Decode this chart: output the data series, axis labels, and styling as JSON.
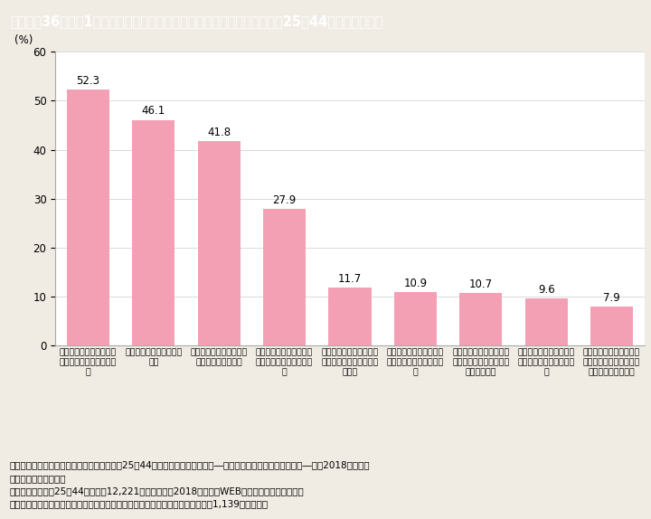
{
  "title": "Ｉ－特－36図　第1子の妊娠・出産を機に仕事を辞めた理由（子供がいる25〜44歳の既婚女性）",
  "ylabel": "(%)",
  "ylim": [
    0,
    60
  ],
  "yticks": [
    0,
    10,
    20,
    30,
    40,
    50,
    60
  ],
  "values": [
    52.3,
    46.1,
    41.8,
    27.9,
    11.7,
    10.9,
    10.7,
    9.6,
    7.9
  ],
  "bar_color": "#F4A0B4",
  "labels": [
    "子育てをしながら仕事を\n続けるのは大変だったか\nら",
    "子育てに専念したかった\nから",
    "自分の体や胎児を大事に\nしたいと考えたから",
    "職場の出産・子育ての支\n援制度が不十分だったか\nら",
    "子どもの体調の悪いとき\nなどに休むことが多かっ\nたから",
    "保育所など，子どもの預\n先を確保できなかったか\nら",
    "夫や家族などの家事・子\n育てのサポートが得られ\nなかったから",
    "夫や家族が仕事を続ける\nことに賛成しなかったか\nら",
    "職場に復帰しても仕事の\n内容が出産前と異なりそ\nうで不満だったから"
  ],
  "note_line1": "（備考）１．株式会社明治安田総合研究所「25〜44歳の子育てと仕事の両立―出産・子育てに関する調査より―」（2018年６月）",
  "note_line2": "　　　　　より作成。",
  "note_line3": "　　　２．全国の25〜44歳の男女12,221人を対象に，2018年３月にWEBアンケート調査を実施。",
  "note_line4": "　　　３．子供がいる既婚女性のうち，第１子の妊娠・出産を機に仕事を辞めた1,139人が回答。",
  "title_bg_color": "#00BCD4",
  "title_text_color": "#FFFFFF",
  "bg_color": "#F0EBE3",
  "plot_bg_color": "#FFFFFF",
  "title_fontsize": 10.5,
  "value_fontsize": 8.5,
  "tick_fontsize": 8.5,
  "label_fontsize": 6.8,
  "note_fontsize": 7.5
}
